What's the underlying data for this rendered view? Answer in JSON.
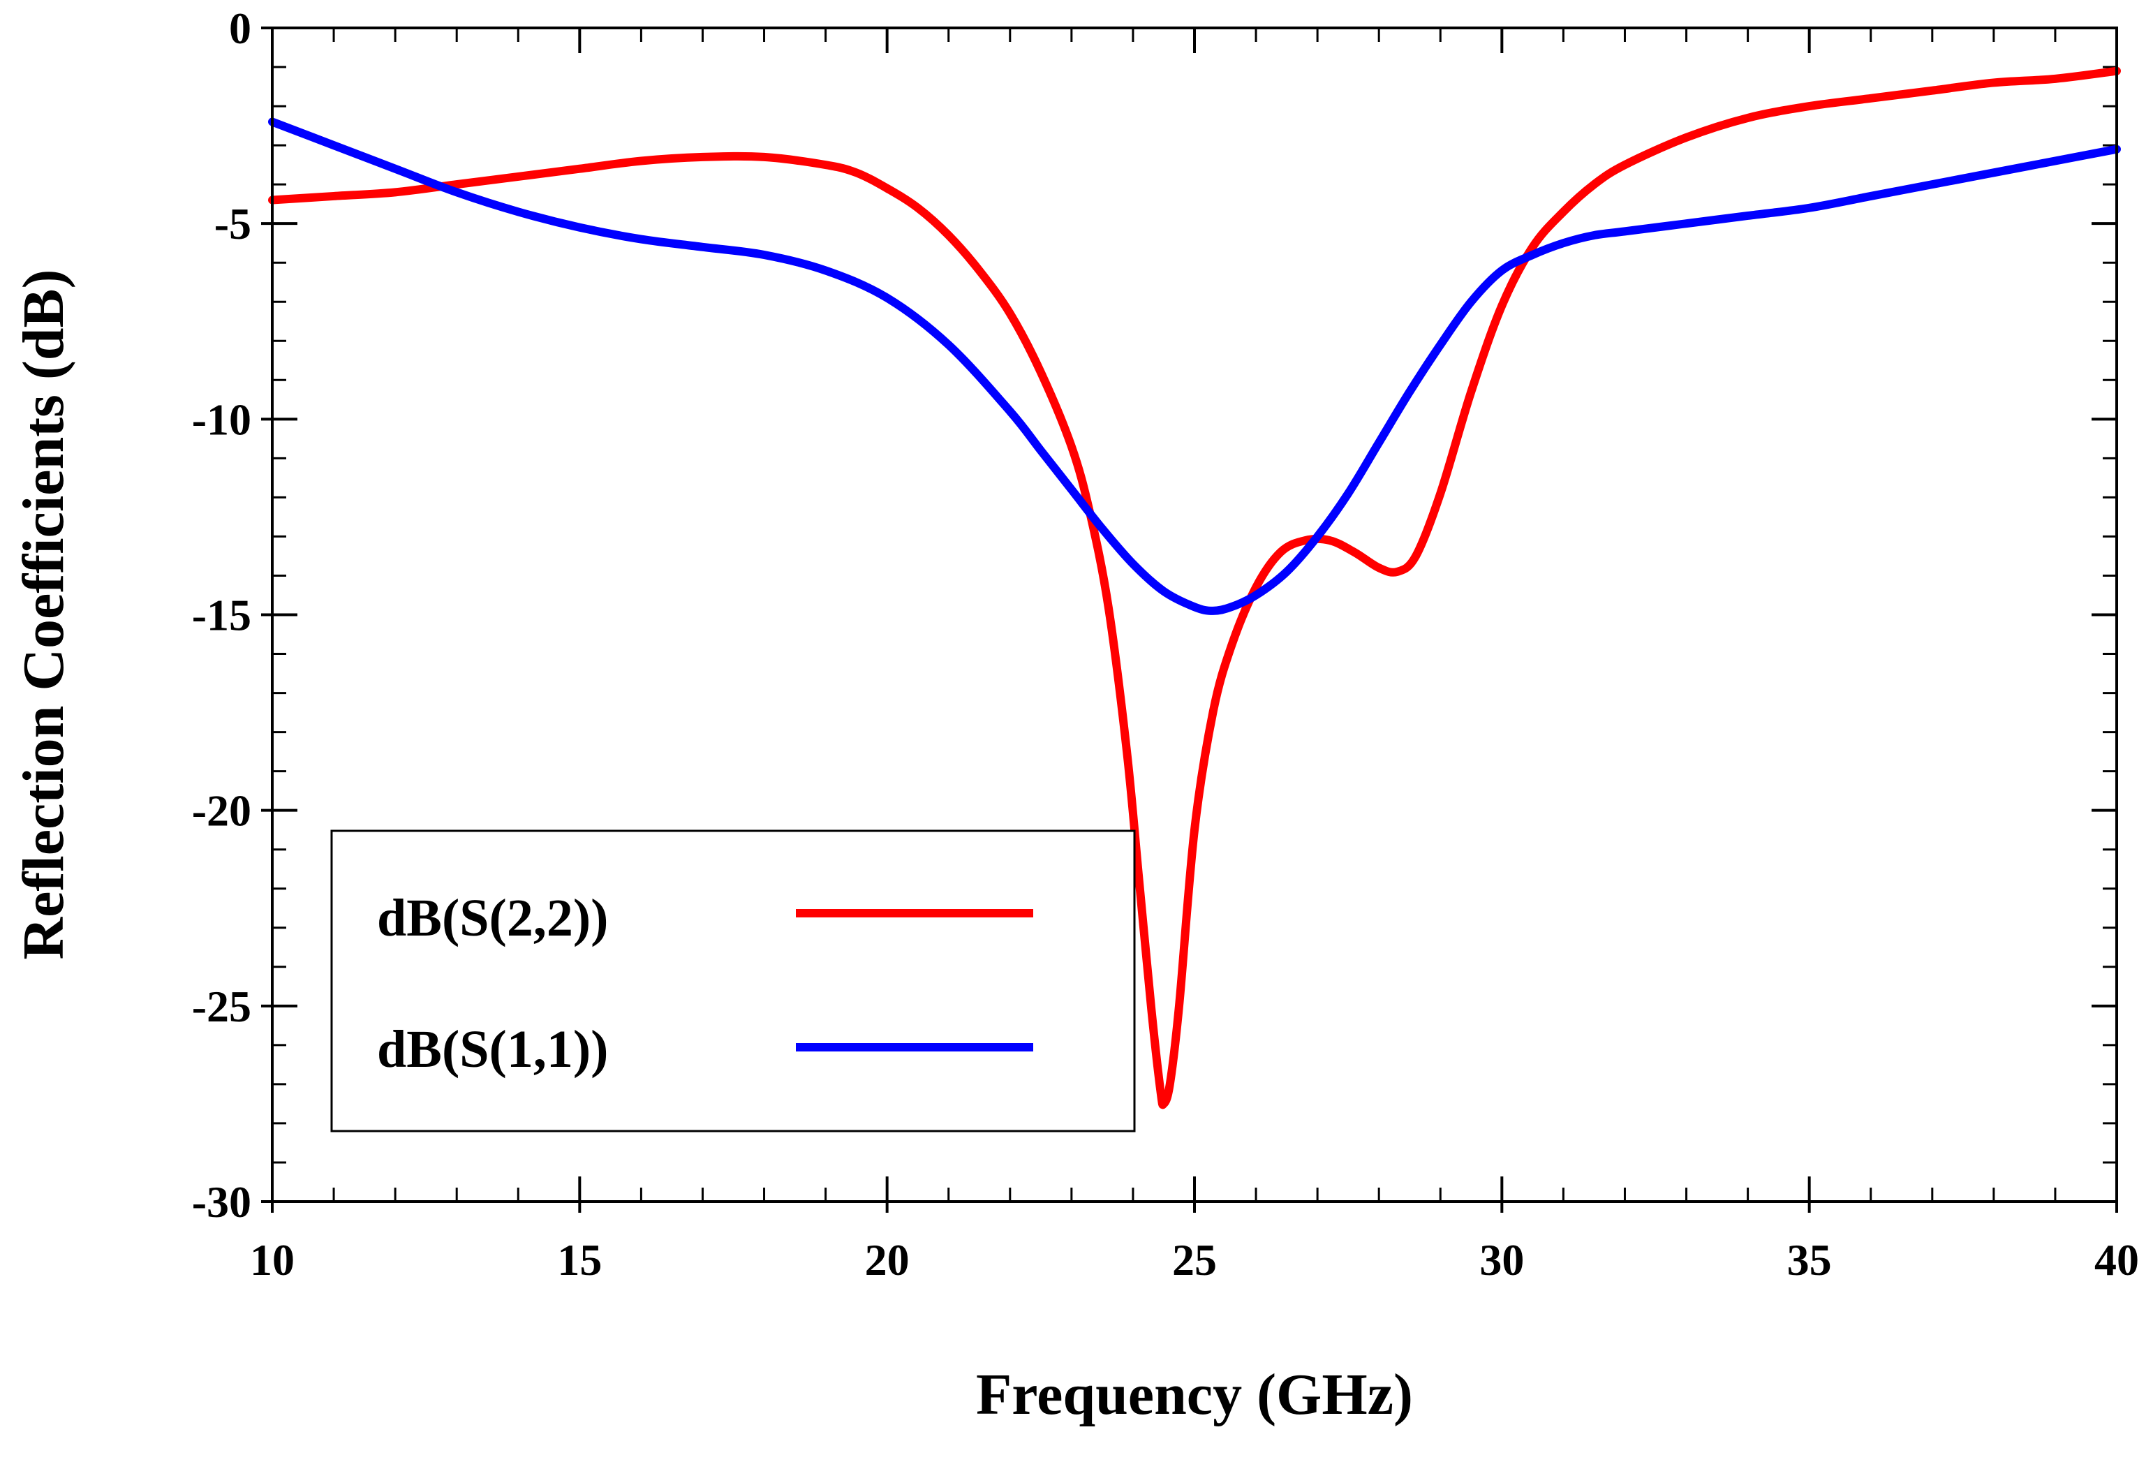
{
  "chart_data": {
    "type": "line",
    "xlabel": "Frequency (GHz)",
    "ylabel": "Reflection Coefficients (dB)",
    "xlim": [
      10,
      40
    ],
    "ylim": [
      -30,
      0
    ],
    "xticks": [
      10,
      15,
      20,
      25,
      30,
      35,
      40
    ],
    "yticks": [
      0,
      -5,
      -10,
      -15,
      -20,
      -25,
      -30
    ],
    "xtick_labels": [
      "10",
      "15",
      "20",
      "25",
      "30",
      "35",
      "40"
    ],
    "ytick_labels": [
      "0",
      "-5",
      "-10",
      "-15",
      "-20",
      "-25",
      "-30"
    ],
    "x_minor_step": 1,
    "y_minor_step": 1,
    "grid": false,
    "legend_position": "bottom-left",
    "series": [
      {
        "name": "dB(S(2,2))",
        "color": "#ff0000",
        "x": [
          10,
          11,
          12,
          13,
          14,
          15,
          16,
          17,
          18,
          19,
          19.5,
          20,
          20.5,
          21,
          21.5,
          22,
          22.5,
          23,
          23.3,
          23.6,
          23.9,
          24.1,
          24.3,
          24.45,
          24.5,
          24.6,
          24.75,
          25,
          25.3,
          25.6,
          26,
          26.4,
          26.8,
          27.2,
          27.6,
          28,
          28.3,
          28.6,
          29,
          29.5,
          30,
          30.5,
          31,
          31.5,
          32,
          33,
          34,
          35,
          36,
          37,
          38,
          39,
          40
        ],
        "y": [
          -4.4,
          -4.3,
          -4.2,
          -4.0,
          -3.8,
          -3.6,
          -3.4,
          -3.3,
          -3.3,
          -3.5,
          -3.7,
          -4.1,
          -4.6,
          -5.3,
          -6.2,
          -7.3,
          -8.8,
          -10.7,
          -12.4,
          -14.8,
          -18.5,
          -21.8,
          -25.1,
          -27.2,
          -27.5,
          -27.0,
          -25.0,
          -20.5,
          -17.5,
          -15.8,
          -14.3,
          -13.4,
          -13.1,
          -13.1,
          -13.4,
          -13.8,
          -13.9,
          -13.5,
          -11.9,
          -9.3,
          -7.1,
          -5.6,
          -4.7,
          -4.0,
          -3.5,
          -2.8,
          -2.3,
          -2.0,
          -1.8,
          -1.6,
          -1.4,
          -1.3,
          -1.1
        ]
      },
      {
        "name": "dB(S(1,1))",
        "color": "#0000ff",
        "x": [
          10,
          11,
          12,
          13,
          14,
          15,
          16,
          17,
          18,
          19,
          20,
          21,
          22,
          22.5,
          23,
          23.5,
          24,
          24.5,
          25,
          25.3,
          25.6,
          26,
          26.5,
          27,
          27.5,
          28,
          28.5,
          29,
          29.5,
          30,
          30.5,
          31,
          31.5,
          32,
          33,
          34,
          35,
          36,
          37,
          38,
          39,
          40
        ],
        "y": [
          -2.4,
          -3.0,
          -3.6,
          -4.2,
          -4.7,
          -5.1,
          -5.4,
          -5.6,
          -5.8,
          -6.2,
          -6.9,
          -8.1,
          -9.8,
          -10.8,
          -11.8,
          -12.8,
          -13.7,
          -14.4,
          -14.8,
          -14.9,
          -14.8,
          -14.5,
          -13.9,
          -13.0,
          -11.9,
          -10.6,
          -9.3,
          -8.1,
          -7.0,
          -6.2,
          -5.8,
          -5.5,
          -5.3,
          -5.2,
          -5.0,
          -4.8,
          -4.6,
          -4.3,
          -4.0,
          -3.7,
          -3.4,
          -3.1
        ]
      }
    ]
  }
}
